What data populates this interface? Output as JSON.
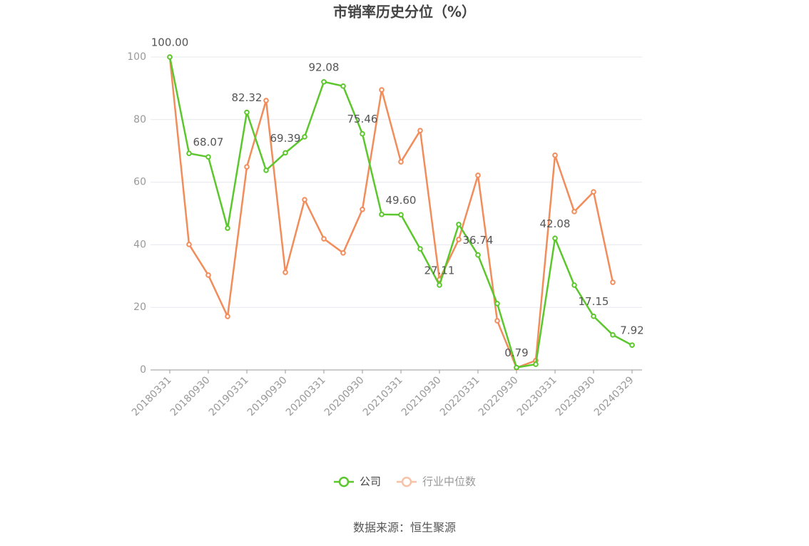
{
  "chart_data": {
    "type": "line",
    "title": "市销率历史分位（%）",
    "categories": [
      "20180331",
      null,
      "20180930",
      null,
      "20190331",
      null,
      "20190930",
      null,
      "20200331",
      null,
      "20200930",
      null,
      "20210331",
      null,
      "20210930",
      null,
      "20220331",
      null,
      "20220930",
      null,
      "20230331",
      null,
      "20230930",
      null,
      "20240329"
    ],
    "series": [
      {
        "name": "公司",
        "color": "#5cc72d",
        "values": [
          100,
          69.2,
          68.07,
          45.3,
          82.32,
          63.8,
          69.39,
          74.5,
          92.08,
          90.7,
          75.46,
          49.7,
          49.6,
          38.7,
          27.11,
          46.5,
          36.74,
          21.2,
          0.79,
          1.8,
          42.08,
          27.1,
          17.15,
          11.2,
          7.92
        ],
        "value_labels": [
          "100.00",
          null,
          "68.07",
          null,
          "82.32",
          null,
          "69.39",
          null,
          "92.08",
          null,
          "75.46",
          null,
          "49.60",
          null,
          "27.11",
          null,
          "36.74",
          null,
          "0.79",
          null,
          "42.08",
          null,
          "17.15",
          null,
          "7.92"
        ]
      },
      {
        "name": "行业中位数",
        "color": "#f28c5a",
        "values": [
          100,
          40.1,
          30.3,
          17.1,
          64.9,
          86.1,
          31.2,
          54.4,
          41.9,
          37.4,
          51.3,
          89.5,
          66.5,
          76.5,
          28.9,
          41.7,
          62.2,
          15.7,
          0.7,
          3.0,
          68.6,
          50.6,
          56.9,
          28.0,
          null
        ]
      }
    ],
    "ylim": [
      0,
      100
    ],
    "yticks": [
      0,
      20,
      40,
      60,
      80,
      100
    ],
    "grid": true,
    "source": "数据来源：恒生聚源"
  }
}
